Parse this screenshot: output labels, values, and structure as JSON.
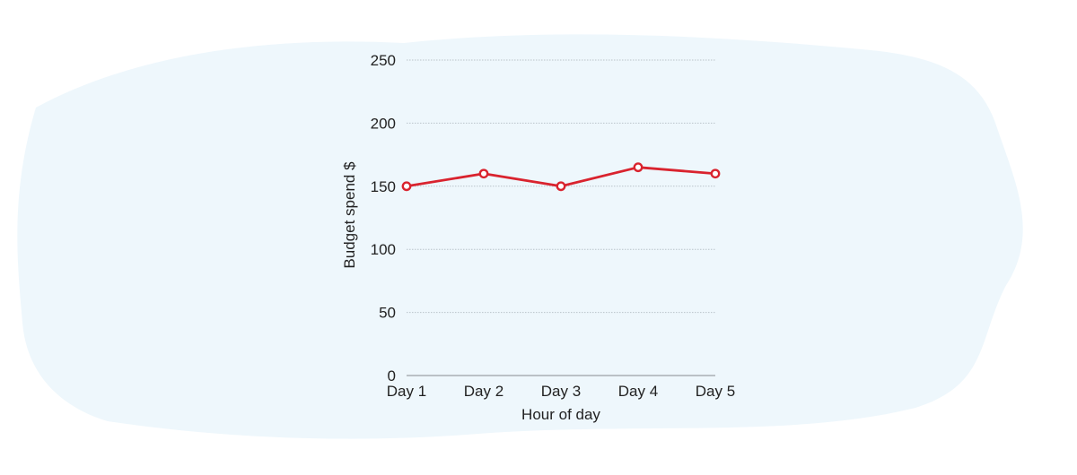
{
  "colors": {
    "background": "#ffffff",
    "brush": "#eef7fc",
    "line": "#d9232e",
    "marker_fill": "#ffffff",
    "grid": "#b9c3c9",
    "text": "#222222"
  },
  "chart_data": {
    "type": "line",
    "categories": [
      "Day 1",
      "Day 2",
      "Day 3",
      "Day 4",
      "Day 5"
    ],
    "series": [
      {
        "values": [
          150,
          160,
          150,
          165,
          160
        ]
      }
    ],
    "title": "",
    "xlabel": "Hour of day",
    "ylabel": "Budget spend $",
    "ylim": [
      0,
      250
    ],
    "yticks": [
      "0",
      "50",
      "100",
      "150",
      "200",
      "250"
    ],
    "grid": true,
    "legend": "none"
  }
}
